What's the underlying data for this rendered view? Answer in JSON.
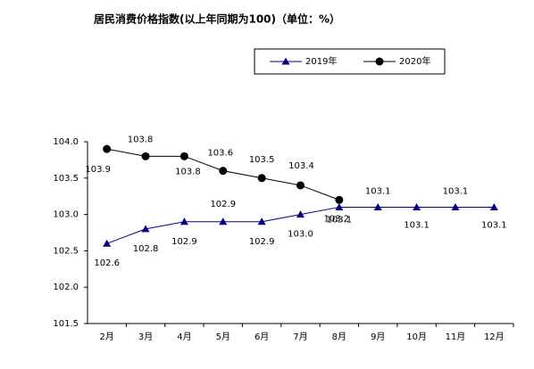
{
  "chart_data": {
    "type": "line",
    "title": "居民消费价格指数(以上年同期为100)（单位：%）",
    "categories": [
      "2月",
      "3月",
      "4月",
      "5月",
      "6月",
      "7月",
      "8月",
      "9月",
      "10月",
      "11月",
      "12月"
    ],
    "series": [
      {
        "name": "2019年",
        "color": "#000080",
        "marker": "triangle",
        "values": [
          102.6,
          102.8,
          102.9,
          102.9,
          102.9,
          103.0,
          103.1,
          103.1,
          103.1,
          103.1,
          103.1
        ],
        "value_labels": [
          "102.6",
          "102.8",
          "102.9",
          "102.9",
          "102.9",
          "103.0",
          "103.1",
          "103.1",
          "103.1",
          "103.1",
          "103.1"
        ]
      },
      {
        "name": "2020年",
        "color": "#000000",
        "marker": "circle",
        "values": [
          103.9,
          103.8,
          103.8,
          103.6,
          103.5,
          103.4,
          103.2,
          null,
          null,
          null,
          null
        ],
        "value_labels": [
          "103.9",
          "103.8",
          "103.8",
          "103.6",
          "103.5",
          "103.4",
          "103.2",
          null,
          null,
          null,
          null
        ]
      }
    ],
    "ylim": [
      101.5,
      104.0
    ],
    "yticks": [
      {
        "value": 101.5,
        "label": "101.5"
      },
      {
        "value": 102.0,
        "label": "102.0"
      },
      {
        "value": 102.5,
        "label": "102.5"
      },
      {
        "value": 103.0,
        "label": "103.0"
      },
      {
        "value": 103.5,
        "label": "103.5"
      },
      {
        "value": 104.0,
        "label": "104.0"
      }
    ],
    "legend": "top"
  }
}
